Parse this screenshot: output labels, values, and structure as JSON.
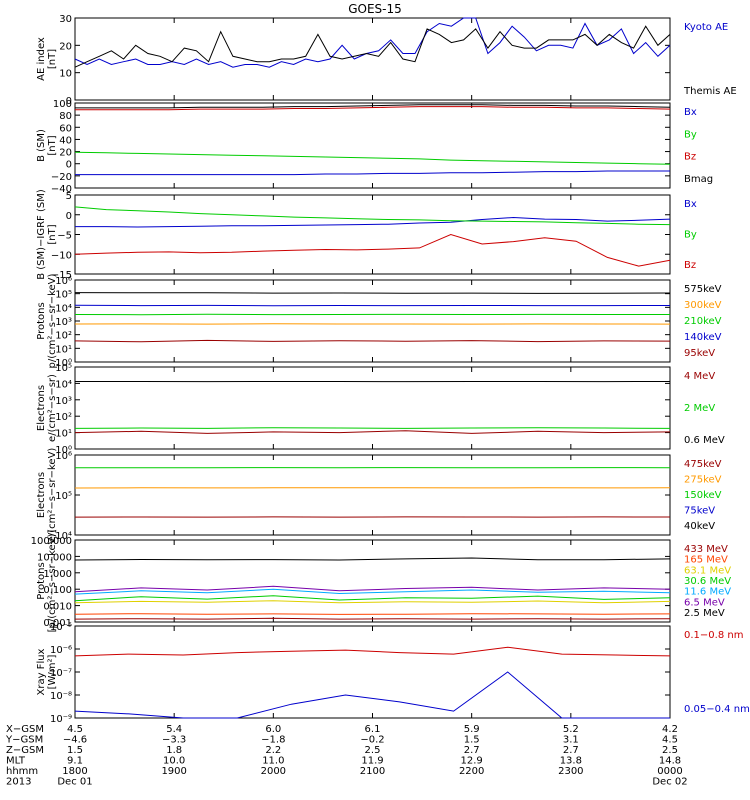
{
  "title": "GOES-15",
  "colors": {
    "black": "#000000",
    "red": "#cc0000",
    "green": "#00cc00",
    "blue": "#0000cc",
    "orange": "#ff9900",
    "lightgreen": "#22dd55",
    "darkred": "#990000",
    "orangered": "#ff4400",
    "yellow": "#e0d000",
    "cyan": "#00aaff",
    "purple": "#7700aa",
    "magenta": "#ff00ff"
  },
  "chart_data": [
    {
      "type": "line",
      "ylabel": "AE index\n[nT]",
      "ylim": [
        0,
        30
      ],
      "yticks": [
        "30",
        "20",
        "10",
        "0"
      ],
      "series": [
        {
          "name": "Kyoto AE",
          "color": "#0000cc",
          "values": [
            15,
            13,
            15,
            13,
            14,
            15,
            13,
            13,
            14,
            13,
            15,
            13,
            14,
            12,
            13,
            13,
            12,
            14,
            13,
            15,
            14,
            15,
            20,
            15,
            17,
            18,
            22,
            17,
            17,
            25,
            28,
            27,
            30,
            30,
            17,
            21,
            27,
            23,
            18,
            20,
            20,
            19,
            28,
            20,
            22,
            26,
            17,
            21,
            16,
            20
          ]
        },
        {
          "name": "Themis AE",
          "color": "#000000",
          "values": [
            12,
            14,
            16,
            18,
            15,
            20,
            17,
            16,
            14,
            19,
            18,
            14,
            25,
            16,
            15,
            14,
            14,
            15,
            15,
            16,
            24,
            16,
            15,
            16,
            17,
            16,
            21,
            15,
            14,
            26,
            24,
            21,
            22,
            26,
            19,
            25,
            20,
            19,
            19,
            22,
            22,
            22,
            24,
            20,
            24,
            21,
            19,
            27,
            20,
            24
          ]
        }
      ]
    },
    {
      "type": "line",
      "ylabel": "B (SM)\n[nT]",
      "ylim": [
        -40,
        100
      ],
      "yticks": [
        "100",
        "80",
        "60",
        "40",
        "20",
        "0",
        "−20",
        "−40"
      ],
      "series": [
        {
          "name": "Bx",
          "color": "#0000cc",
          "values": [
            -18,
            -18,
            -18,
            -18,
            -18,
            -18,
            -18,
            -18,
            -17,
            -17,
            -16,
            -16,
            -15,
            -15,
            -14,
            -13,
            -13,
            -12,
            -12,
            -12
          ]
        },
        {
          "name": "By",
          "color": "#00cc00",
          "values": [
            19,
            18,
            17,
            16,
            15,
            14,
            13,
            12,
            11,
            10,
            9,
            8,
            6,
            5,
            4,
            3,
            2,
            1,
            0,
            -1
          ]
        },
        {
          "name": "Bz",
          "color": "#cc0000",
          "values": [
            89,
            89,
            89,
            89,
            90,
            90,
            90,
            91,
            91,
            92,
            93,
            94,
            94,
            94,
            93,
            93,
            92,
            92,
            91,
            90
          ]
        },
        {
          "name": "Bmag",
          "color": "#000000",
          "values": [
            92,
            92,
            92,
            92,
            93,
            93,
            93,
            94,
            94,
            95,
            96,
            97,
            97,
            97,
            96,
            96,
            95,
            95,
            94,
            93
          ]
        }
      ]
    },
    {
      "type": "line",
      "ylabel": "B (SM)−IGRF (SM)\n[nT]",
      "ylim": [
        -15,
        5
      ],
      "yticks": [
        "5",
        "0",
        "−5",
        "−10",
        "−15"
      ],
      "series": [
        {
          "name": "Bx",
          "color": "#0000cc",
          "values": [
            -3,
            -3,
            -3.1,
            -3,
            -2.9,
            -2.8,
            -2.8,
            -2.7,
            -2.6,
            -2.5,
            -2.4,
            -2.1,
            -1.9,
            -1.2,
            -0.7,
            -1.1,
            -1.2,
            -1.6,
            -1.4,
            -1.1
          ]
        },
        {
          "name": "By",
          "color": "#00cc00",
          "values": [
            2,
            1.3,
            1,
            0.7,
            0.3,
            0,
            -0.3,
            -0.6,
            -0.8,
            -1,
            -1.2,
            -1.3,
            -1.5,
            -1.6,
            -1.7,
            -1.8,
            -2,
            -2.2,
            -2.4,
            -2.5
          ]
        },
        {
          "name": "Bz",
          "color": "#cc0000",
          "values": [
            -10,
            -9.7,
            -9.5,
            -9.4,
            -9.6,
            -9.5,
            -9.2,
            -9,
            -8.8,
            -8.9,
            -8.7,
            -8.4,
            -5,
            -7.4,
            -6.8,
            -5.8,
            -6.7,
            -10.8,
            -13,
            -11.5
          ]
        }
      ]
    },
    {
      "type": "line",
      "ylabel": "Protons\np/(cm²−s−sr−keV)",
      "ylim_log": [
        0,
        6
      ],
      "yticks": [
        "10⁶",
        "10⁵",
        "10⁴",
        "10³",
        "10²",
        "10¹",
        "10⁰"
      ],
      "series": [
        {
          "name": "575keV",
          "color": "#000000",
          "values": [
            120000,
            115000,
            118000,
            110000,
            112000,
            108000,
            110000,
            105000,
            108000,
            112000
          ]
        },
        {
          "name": "300keV",
          "color": "#ff9900",
          "values": [
            600,
            610,
            590,
            620,
            600,
            605,
            595,
            610,
            600,
            598
          ]
        },
        {
          "name": "210keV",
          "color": "#00cc00",
          "values": [
            3000,
            2900,
            3100,
            2950,
            3000,
            3050,
            2980,
            3020,
            2990,
            3000
          ]
        },
        {
          "name": "140keV",
          "color": "#0000cc",
          "values": [
            14000,
            13500,
            13800,
            13200,
            13600,
            13400,
            13700,
            13300,
            13500,
            13600
          ]
        },
        {
          "name": "95keV",
          "color": "#990000",
          "values": [
            35,
            30,
            38,
            32,
            36,
            33,
            37,
            31,
            35,
            34
          ]
        }
      ]
    },
    {
      "type": "line",
      "ylabel": "Electrons\ne/(cm²−s−sr)",
      "ylim_log": [
        0,
        5
      ],
      "yticks": [
        "10⁵",
        "10⁴",
        "10³",
        "10²",
        "10¹",
        "10⁰"
      ],
      "series": [
        {
          "name": "4 MeV",
          "color": "#990000",
          "values": [
            10,
            12,
            9,
            11,
            10,
            13,
            9,
            12,
            10,
            11
          ]
        },
        {
          "name": "2 MeV",
          "color": "#00cc00",
          "values": [
            18,
            19,
            18,
            20,
            19,
            18,
            19,
            20,
            19,
            18
          ]
        },
        {
          "name": "0.6 MeV",
          "color": "#000000",
          "values": [
            13000,
            13100,
            12900,
            13000,
            13050,
            12950,
            13000,
            13100,
            12950,
            13000
          ]
        }
      ]
    },
    {
      "type": "line",
      "ylabel": "Electrons\ne/(cm²−s−sr−keV)",
      "ylim_log": [
        4,
        6
      ],
      "yticks": [
        "10⁶",
        "10⁵",
        "10⁴"
      ],
      "series": [
        {
          "name": "475keV",
          "color": "#990000",
          "values": [
            28000,
            28200,
            28100,
            28300,
            28000,
            28400,
            28200,
            28100,
            28300,
            28200
          ]
        },
        {
          "name": "275keV",
          "color": "#ff9900",
          "values": [
            150000,
            151000,
            150500,
            151500,
            152000,
            151000,
            150800,
            151200,
            150900,
            151000
          ]
        },
        {
          "name": "150keV",
          "color": "#00cc00",
          "values": [
            480000,
            482000,
            479000,
            483000,
            481000,
            484000,
            482000,
            480000,
            483000,
            481000
          ]
        },
        {
          "name": "75keV",
          "color": "#0000cc",
          "values": []
        },
        {
          "name": "40keV",
          "color": "#000000",
          "values": []
        }
      ]
    },
    {
      "type": "line",
      "ylabel": "Protons\n[p/(cm²−s−sr−keV)]",
      "ylim_log": [
        -3,
        2
      ],
      "yticks": [
        "100.000",
        "10.000",
        "1.000",
        "0.100",
        "0.010",
        "0.001"
      ],
      "series": [
        {
          "name": "433 MeV",
          "color": "#990000",
          "values": [
            0.0015,
            0.0016,
            0.0015,
            0.0017,
            0.0015,
            0.0016,
            0.0015,
            0.0016,
            0.0015,
            0.0016
          ]
        },
        {
          "name": "165 MeV",
          "color": "#ff4400",
          "values": [
            0.003,
            0.0032,
            0.003,
            0.0031,
            0.0029,
            0.003,
            0.0032,
            0.0031,
            0.003,
            0.0031
          ]
        },
        {
          "name": "63.1 MeV",
          "color": "#e0d000",
          "values": [
            0.015,
            0.018,
            0.016,
            0.02,
            0.015,
            0.017,
            0.016,
            0.019,
            0.015,
            0.018
          ]
        },
        {
          "name": "30.6 MeV",
          "color": "#00cc00",
          "values": [
            0.02,
            0.035,
            0.025,
            0.04,
            0.022,
            0.03,
            0.028,
            0.038,
            0.024,
            0.03
          ]
        },
        {
          "name": "11.6 MeV",
          "color": "#00aaff",
          "values": [
            0.05,
            0.08,
            0.06,
            0.1,
            0.055,
            0.07,
            0.09,
            0.065,
            0.075,
            0.06
          ]
        },
        {
          "name": "6.5 MeV",
          "color": "#7700aa",
          "values": [
            0.07,
            0.12,
            0.09,
            0.15,
            0.08,
            0.11,
            0.13,
            0.09,
            0.12,
            0.1
          ]
        },
        {
          "name": "2.5 MeV",
          "color": "#000000",
          "values": [
            6,
            6.5,
            6.2,
            6.4,
            6,
            7,
            8,
            6.2,
            6.3,
            7
          ]
        }
      ]
    },
    {
      "type": "line",
      "ylabel": "Xray Flux\n[W/m²]",
      "ylim_log": [
        -9,
        -5
      ],
      "yticks": [
        "10⁻⁵",
        "10⁻⁶",
        "10⁻⁷",
        "10⁻⁸",
        "10⁻⁹"
      ],
      "series": [
        {
          "name": "0.1−0.8 nm",
          "color": "#cc0000",
          "values": [
            5e-07,
            6e-07,
            5.5e-07,
            7e-07,
            8e-07,
            9e-07,
            7e-07,
            6e-07,
            1.2e-06,
            6e-07,
            5.5e-07,
            5e-07
          ]
        },
        {
          "name": "0.05−0.4 nm",
          "color": "#0000cc",
          "values": [
            2e-09,
            1.5e-09,
            1e-09,
            1e-09,
            4e-09,
            1e-08,
            5e-09,
            2e-09,
            1e-07,
            1e-09,
            1e-09,
            1e-09
          ]
        }
      ]
    }
  ],
  "footer": {
    "row_labels": [
      "X−GSM",
      "Y−GSM",
      "Z−GSM",
      "MLT",
      "hhmm",
      "2013"
    ],
    "columns": [
      [
        "4.5",
        "−4.6",
        "1.5",
        "9.1",
        "1800",
        "Dec 01"
      ],
      [
        "5.4",
        "−3.3",
        "1.8",
        "10.0",
        "1900",
        ""
      ],
      [
        "6.0",
        "−1.8",
        "2.2",
        "11.0",
        "2000",
        ""
      ],
      [
        "6.1",
        "−0.2",
        "2.5",
        "11.9",
        "2100",
        ""
      ],
      [
        "5.9",
        "1.5",
        "2.7",
        "12.9",
        "2200",
        ""
      ],
      [
        "5.2",
        "3.1",
        "2.7",
        "13.8",
        "2300",
        ""
      ],
      [
        "4.2",
        "4.5",
        "2.5",
        "14.8",
        "0000",
        "Dec 02"
      ]
    ]
  }
}
